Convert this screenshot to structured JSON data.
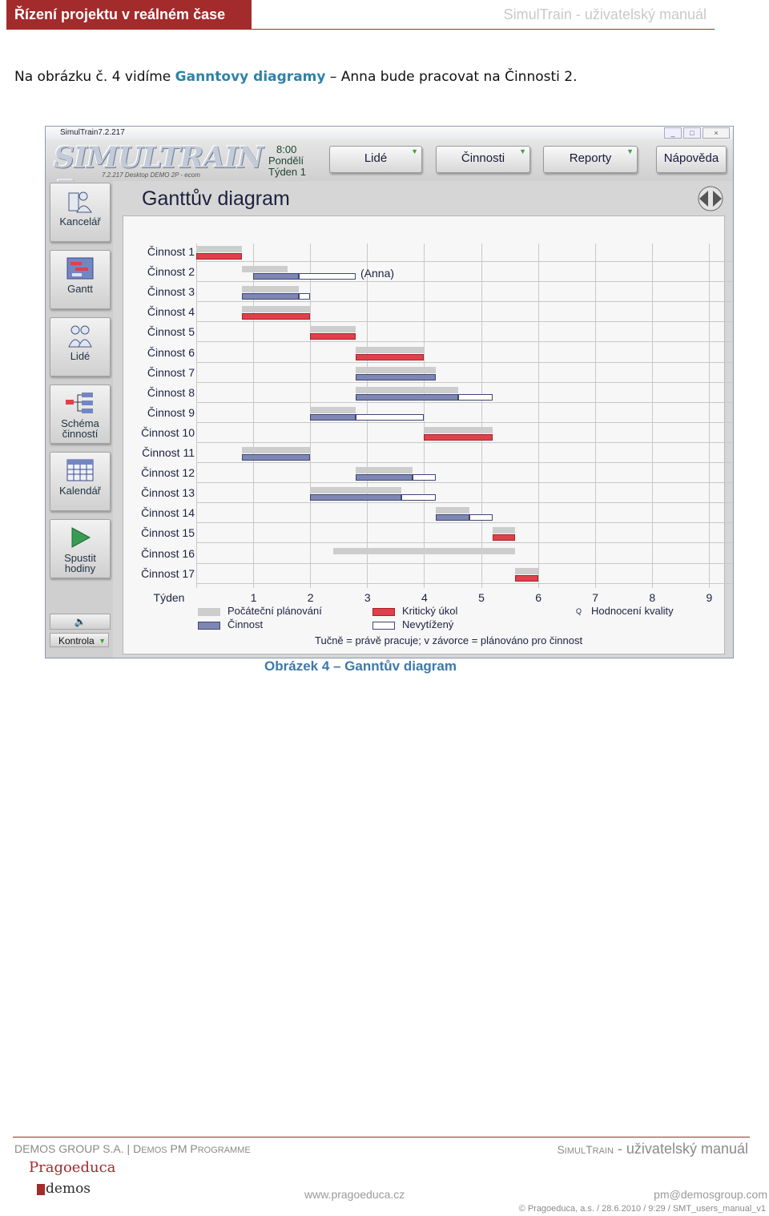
{
  "header": {
    "left_title": "Řízení projektu v reálném čase",
    "right_title": "SimulTrain - uživatelský manuál"
  },
  "intro": {
    "part1": "Na obrázku č. 4 vidíme ",
    "highlight": "Ganntovy diagramy",
    "part2": " – Anna bude pracovat na Činnosti 2."
  },
  "app": {
    "window_title": "SimulTrain7.2.217",
    "window_controls": [
      "_",
      "□",
      "×"
    ],
    "logo_text": "SIMULTRAIN 7",
    "logo_sub": "7.2.217 Desktop DEMO 2P - ecom",
    "clock": {
      "time": "8:00",
      "day": "Pondělí",
      "week": "Týden 1"
    },
    "nav": [
      {
        "label": "Lidé",
        "has_arrow": true
      },
      {
        "label": "Činnosti",
        "has_arrow": true
      },
      {
        "label": "Reporty",
        "has_arrow": true
      },
      {
        "label": "Nápověda",
        "has_arrow": false
      }
    ],
    "sidebar": [
      {
        "label1": "Kancelář",
        "label2": "",
        "icon": "office-icon"
      },
      {
        "label1": "Gantt",
        "label2": "",
        "icon": "gantt-icon"
      },
      {
        "label1": "Lidé",
        "label2": "",
        "icon": "people-icon"
      },
      {
        "label1": "Schéma",
        "label2": "činností",
        "icon": "schema-icon"
      },
      {
        "label1": "Kalendář",
        "label2": "",
        "icon": "calendar-icon"
      },
      {
        "label1": "Spustit",
        "label2": "hodiny",
        "icon": "play-icon"
      }
    ],
    "sound_icon": "speaker-icon",
    "kontrola_label": "Kontrola",
    "gantt_title": "Ganttův diagram",
    "nav_arrows_icon": "prev-next-arrows-icon"
  },
  "gantt": {
    "activities": [
      "Činnost 1",
      "Činnost 2",
      "Činnost 3",
      "Činnost 4",
      "Činnost 5",
      "Činnost 6",
      "Činnost 7",
      "Činnost 8",
      "Činnost 9",
      "Činnost 10",
      "Činnost 11",
      "Činnost 12",
      "Činnost 13",
      "Činnost 14",
      "Činnost 15",
      "Činnost 16",
      "Činnost 17"
    ],
    "week_label": "Týden",
    "weeks": [
      "1",
      "2",
      "3",
      "4",
      "5",
      "6",
      "7",
      "8",
      "9"
    ],
    "annotation": "(Anna)",
    "bars": [
      {
        "row": 0,
        "init": [
          0,
          0.8
        ],
        "kind": "crit",
        "main": [
          0,
          0.8
        ]
      },
      {
        "row": 1,
        "init": [
          0.8,
          1.6
        ],
        "kind": "act",
        "main": [
          1.0,
          1.8
        ],
        "over": [
          1.8,
          2.8
        ]
      },
      {
        "row": 2,
        "init": [
          0.8,
          1.8
        ],
        "kind": "act",
        "main": [
          0.8,
          1.8
        ],
        "over": [
          1.8,
          2.0
        ]
      },
      {
        "row": 3,
        "init": [
          0.8,
          2.0
        ],
        "kind": "crit",
        "main": [
          0.8,
          2.0
        ]
      },
      {
        "row": 4,
        "init": [
          2.0,
          2.8
        ],
        "kind": "crit",
        "main": [
          2.0,
          2.8
        ]
      },
      {
        "row": 5,
        "init": [
          2.8,
          4.0
        ],
        "kind": "crit",
        "main": [
          2.8,
          4.0
        ]
      },
      {
        "row": 6,
        "init": [
          2.8,
          4.2
        ],
        "kind": "act",
        "main": [
          2.8,
          4.2
        ]
      },
      {
        "row": 7,
        "init": [
          2.8,
          4.6
        ],
        "kind": "act",
        "main": [
          2.8,
          4.6
        ],
        "over": [
          4.6,
          5.2
        ]
      },
      {
        "row": 8,
        "init": [
          2.0,
          2.8
        ],
        "kind": "act",
        "main": [
          2.0,
          2.8
        ],
        "over": [
          2.8,
          4.0
        ]
      },
      {
        "row": 9,
        "init": [
          4.0,
          5.2
        ],
        "kind": "crit",
        "main": [
          4.0,
          5.2
        ]
      },
      {
        "row": 10,
        "init": [
          0.8,
          2.0
        ],
        "kind": "act",
        "main": [
          0.8,
          2.0
        ]
      },
      {
        "row": 11,
        "init": [
          2.8,
          3.8
        ],
        "kind": "act",
        "main": [
          2.8,
          3.8
        ],
        "over": [
          3.8,
          4.2
        ]
      },
      {
        "row": 12,
        "init": [
          2.0,
          3.6
        ],
        "kind": "act",
        "main": [
          2.0,
          3.6
        ],
        "over": [
          3.6,
          4.2
        ]
      },
      {
        "row": 13,
        "init": [
          4.2,
          4.8
        ],
        "kind": "act",
        "main": [
          4.2,
          4.8
        ],
        "over": [
          4.8,
          5.2
        ]
      },
      {
        "row": 14,
        "init": [
          5.2,
          5.6
        ],
        "kind": "crit",
        "main": [
          5.2,
          5.6
        ]
      },
      {
        "row": 15,
        "init": [
          2.4,
          5.6
        ]
      },
      {
        "row": 16,
        "init": [
          5.6,
          6.0
        ],
        "kind": "crit",
        "main": [
          5.6,
          6.0
        ]
      }
    ],
    "legend": {
      "initial": "Počáteční plánování",
      "activity": "Činnost",
      "critical": "Kritický úkol",
      "underloaded": "Nevytížený",
      "quality_marker": "Q",
      "quality": "Hodnocení kvality",
      "note": "Tučně = právě pracuje; v závorce = plánováno pro činnost"
    },
    "colors": {
      "critical": "#e0404a",
      "activity": "#7e86b4",
      "initial": "#cdcdcd",
      "underloaded": "#ffffff"
    }
  },
  "caption": "Obrázek 4 – Ganntův diagram",
  "footer": {
    "left_a": "DEMOS GROUP S.A. | D",
    "left_b": "EMOS",
    "left_c": " PM P",
    "left_d": "ROGRAMME",
    "right_a": "S",
    "right_b": "IMUL",
    "right_c": "T",
    "right_d": "RAIN",
    "right_e": " - uživatelský manuál",
    "logo1": "Pragoeduca",
    "logo2": "demos",
    "website": "www.pragoeduca.cz",
    "email": "pm@demosgroup.com",
    "copyright": "© Pragoeduca, a.s. / 28.6.2010 / 9:29 / SMT_users_manual_v1"
  }
}
